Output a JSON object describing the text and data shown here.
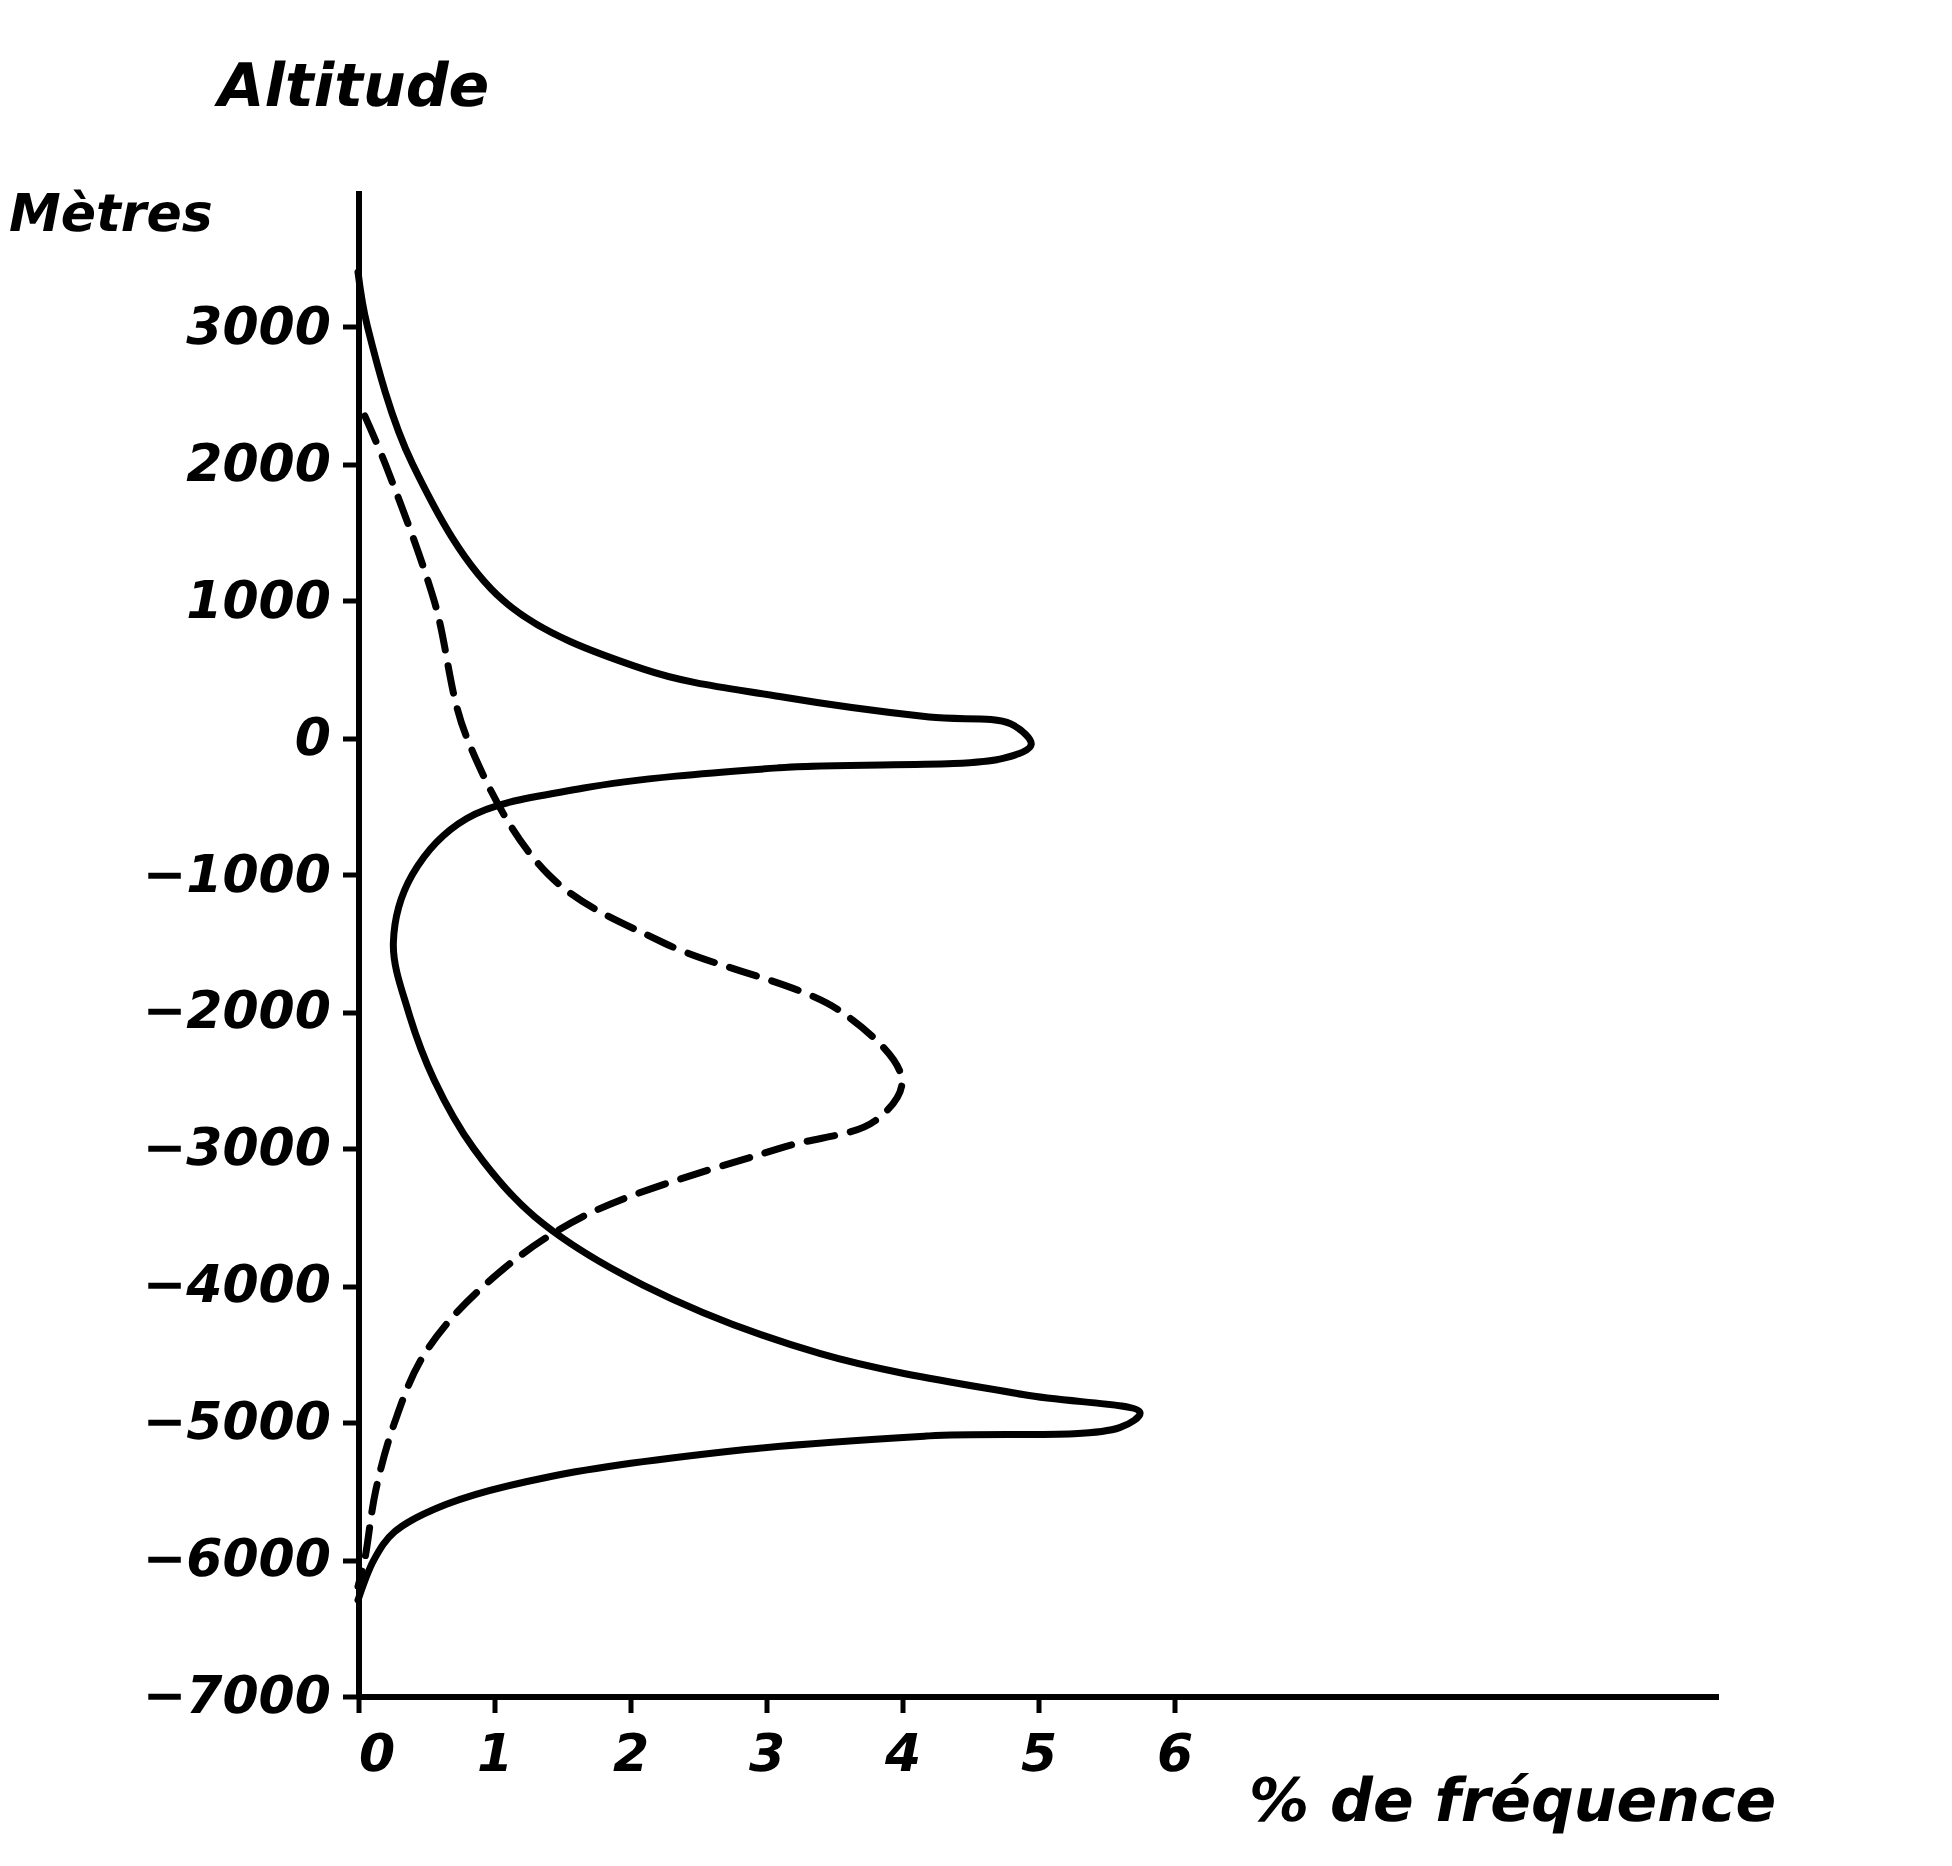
{
  "chart_data": {
    "type": "line",
    "title": "Altitude",
    "ylabel": "Mètres",
    "xlabel": "% de fréquence",
    "xlim": [
      0,
      10
    ],
    "xticks": [
      0,
      1,
      2,
      3,
      4,
      5,
      6
    ],
    "ylim": [
      -7000,
      4000
    ],
    "yticks": [
      3000,
      2000,
      1000,
      0,
      -1000,
      -2000,
      -3000,
      -4000,
      -5000,
      -6000,
      -7000
    ],
    "grid": false,
    "legend": false,
    "marker": "none",
    "series": [
      {
        "color": "#000000",
        "line_style": "solid",
        "x": [
          0,
          0.07,
          0.4,
          1.07,
          2.1,
          3.1,
          4.2,
          4.8,
          4.95,
          4.75,
          3.1,
          1.65,
          0.8,
          0.4,
          0.26,
          0.37,
          0.56,
          0.85,
          1.3,
          2.1,
          3.4,
          4.9,
          5.75,
          5.6,
          4.2,
          2.85,
          1.4,
          0.65,
          0.27,
          0.12,
          0
        ],
        "values": [
          3400,
          3000,
          2000,
          1000,
          500,
          300,
          150,
          100,
          -50,
          -150,
          -220,
          -370,
          -590,
          -1000,
          -1500,
          -2000,
          -2500,
          -3000,
          -3500,
          -4000,
          -4500,
          -4800,
          -4930,
          -5040,
          -5100,
          -5200,
          -5400,
          -5600,
          -5800,
          -6000,
          -6300
        ]
      },
      {
        "color": "#000000",
        "line_style": "dashed",
        "x": [
          0.05,
          0.2,
          0.56,
          0.8,
          1.4,
          2.25,
          3.55,
          4.0,
          3.8,
          3.1,
          1.65,
          0.93,
          0.49,
          0.27,
          0.13,
          0.05,
          0
        ],
        "values": [
          2350,
          2000,
          1000,
          0,
          -1000,
          -1500,
          -2000,
          -2500,
          -2800,
          -3000,
          -3500,
          -4000,
          -4500,
          -5000,
          -5500,
          -6000,
          -6200
        ]
      }
    ]
  }
}
